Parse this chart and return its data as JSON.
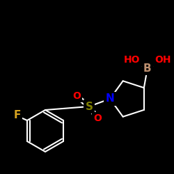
{
  "background_color": "#000000",
  "bond_color": "#ffffff",
  "atom_colors": {
    "B": "#bc8f6f",
    "O": "#ff0000",
    "N": "#0000ff",
    "F": "#daa520",
    "S": "#808000",
    "C": "#ffffff"
  },
  "lw": 1.5,
  "figsize": [
    2.5,
    2.5
  ],
  "dpi": 100,
  "fs": 10
}
